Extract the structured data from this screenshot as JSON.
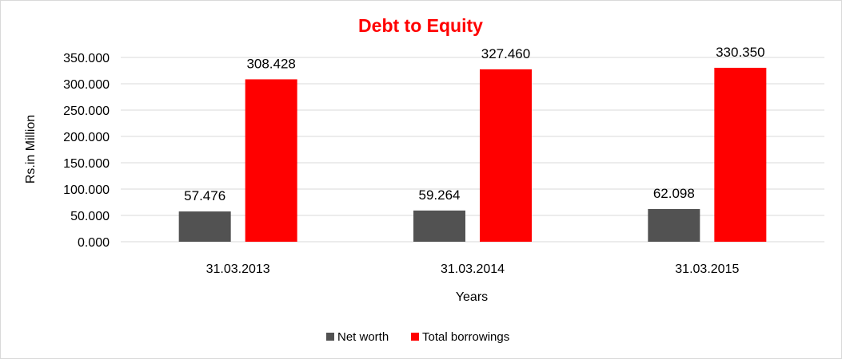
{
  "chart_data": {
    "type": "bar",
    "title": "Debt to Equity",
    "xlabel": "Years",
    "ylabel": "Rs.in Million",
    "categories": [
      "31.03.2013",
      "31.03.2014",
      "31.03.2015"
    ],
    "series": [
      {
        "name": "Net worth",
        "values": [
          57.476,
          59.264,
          62.098
        ],
        "color": "#525252"
      },
      {
        "name": "Total borrowings",
        "values": [
          308.428,
          327.46,
          330.35
        ],
        "color": "#ff0000"
      }
    ],
    "data_labels": [
      [
        "57.476",
        "59.264",
        "62.098"
      ],
      [
        "308.428",
        "327.460",
        "330.350"
      ]
    ],
    "ylim": [
      0,
      350
    ],
    "yticks": [
      0,
      50,
      100,
      150,
      200,
      250,
      300,
      350
    ],
    "ytick_labels": [
      "0.000",
      "50.000",
      "100.000",
      "150.000",
      "200.000",
      "250.000",
      "300.000",
      "350.000"
    ],
    "grid": true,
    "legend_position": "bottom",
    "title_color": "#ff0000"
  }
}
